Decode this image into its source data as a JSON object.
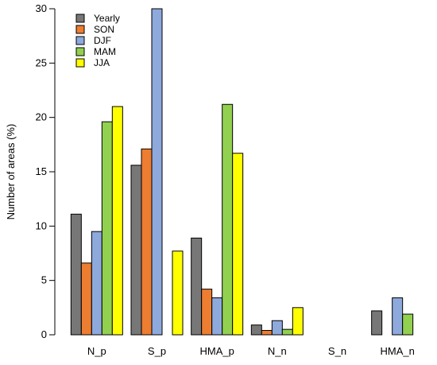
{
  "chart_data": {
    "type": "bar",
    "categories": [
      "N_p",
      "S_p",
      "HMA_p",
      "N_n",
      "S_n",
      "HMA_n"
    ],
    "series": [
      {
        "name": "Yearly",
        "color": "#777777",
        "values": [
          11.1,
          15.6,
          8.9,
          0.9,
          0,
          2.2
        ]
      },
      {
        "name": "SON",
        "color": "#ED7D31",
        "values": [
          6.6,
          17.1,
          4.2,
          0.4,
          0,
          0
        ]
      },
      {
        "name": "DJF",
        "color": "#8EA9DB",
        "values": [
          9.5,
          30.0,
          3.4,
          1.3,
          0,
          3.4
        ]
      },
      {
        "name": "MAM",
        "color": "#92D050",
        "values": [
          19.6,
          0,
          21.2,
          0.5,
          0,
          1.9
        ]
      },
      {
        "name": "JJA",
        "color": "#FFFF00",
        "values": [
          21.0,
          7.7,
          16.7,
          2.5,
          0,
          0
        ]
      }
    ],
    "ylabel": "Number of areas (%)",
    "xlabel": "",
    "ylim": [
      0,
      30
    ],
    "yticks": [
      "0",
      "5",
      "10",
      "15",
      "20",
      "25",
      "30"
    ],
    "legend_position": "top-left",
    "grid": false
  }
}
